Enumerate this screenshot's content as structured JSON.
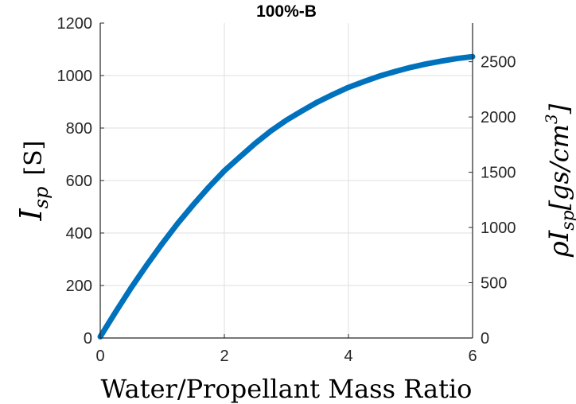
{
  "chart_data": {
    "type": "line",
    "title": "100%-B",
    "xlabel": "Water/Propellant Mass Ratio",
    "ylabel": {
      "main": "I",
      "sub": "sp",
      "unit": "[S]"
    },
    "ylabel_right": {
      "rho": "ρ",
      "main": "I",
      "sub": "sp",
      "unit_open": "[gs/cm",
      "unit_exp": "3",
      "unit_close": "]"
    },
    "xlim": [
      0,
      6
    ],
    "ylim": [
      0,
      1200
    ],
    "ylim_right": [
      0,
      2850
    ],
    "xticks": [
      0,
      2,
      4,
      6
    ],
    "yticks": [
      0,
      200,
      400,
      600,
      800,
      1000,
      1200
    ],
    "yticks_right": [
      0,
      500,
      1000,
      1500,
      2000,
      2500
    ],
    "grid": true,
    "line_color": "#0072BD",
    "series": [
      {
        "x": [
          0,
          0.25,
          0.5,
          0.75,
          1,
          1.25,
          1.5,
          1.75,
          2,
          2.25,
          2.5,
          2.75,
          3,
          3.25,
          3.5,
          3.75,
          4,
          4.25,
          4.5,
          4.75,
          5,
          5.25,
          5.5,
          5.75,
          6
        ],
        "y": [
          5,
          100,
          192,
          278,
          360,
          437,
          508,
          575,
          637,
          690,
          742,
          789,
          830,
          865,
          899,
          928,
          955,
          977,
          998,
          1015,
          1031,
          1044,
          1055,
          1065,
          1072
        ]
      }
    ]
  }
}
